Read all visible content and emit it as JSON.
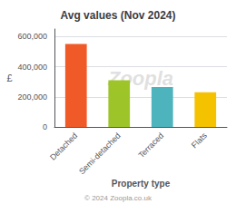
{
  "chart_data": {
    "type": "bar",
    "title": "Avg values (Nov 2024)",
    "xlabel": "Property type",
    "ylabel": "£",
    "categories": [
      "Detached",
      "Semi-detached",
      "Terraced",
      "Flats"
    ],
    "values": [
      550000,
      310000,
      265000,
      230000
    ],
    "colors": [
      "#f05a28",
      "#9dc52a",
      "#4db3bc",
      "#f5c200"
    ],
    "ylim": [
      0,
      650000
    ],
    "yticks": [
      0,
      {
        "value": 200000,
        "label": "200,000"
      },
      {
        "value": 400000,
        "label": "400,000"
      },
      {
        "value": 600000,
        "label": "600,000"
      }
    ],
    "grid": true,
    "annotations": [
      "Zoopla",
      "© 2024 Zoopla.co.uk"
    ]
  }
}
